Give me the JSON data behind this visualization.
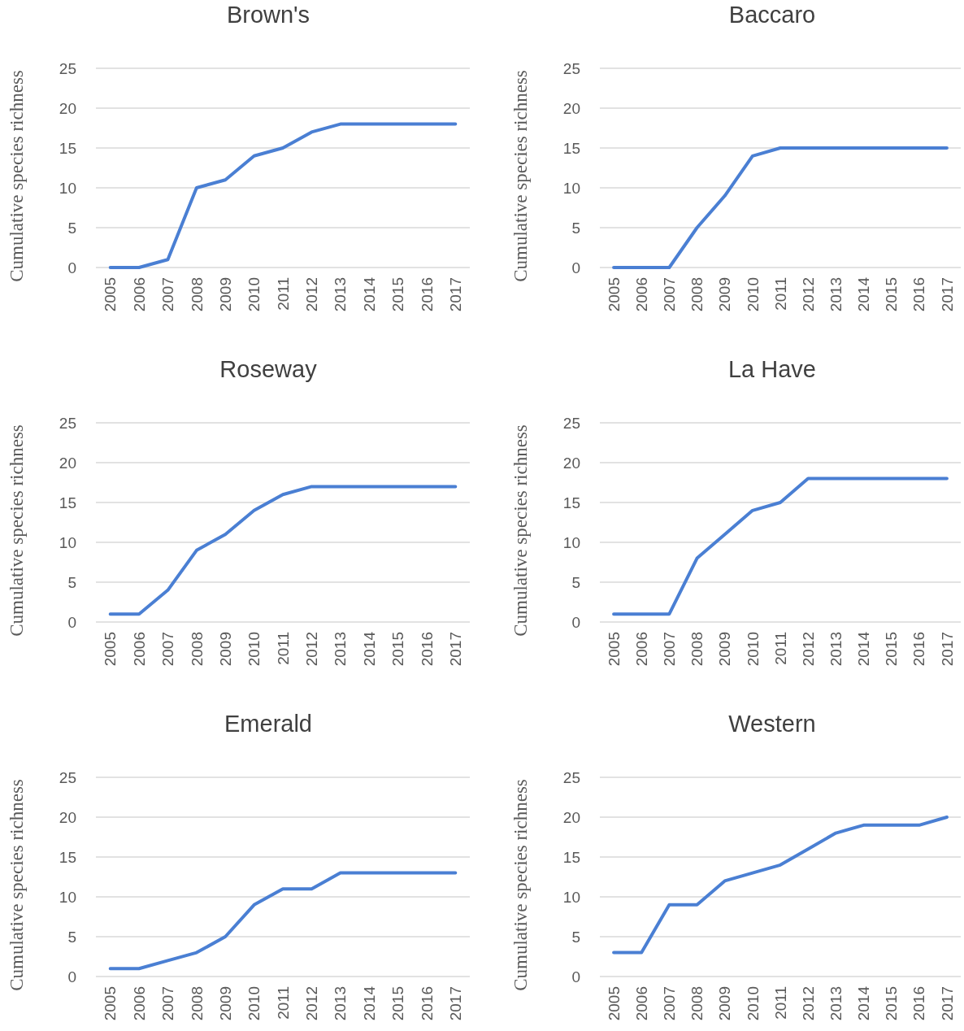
{
  "chart_data": [
    {
      "type": "line",
      "title": "Brown's",
      "ylabel": "Cumulative species richness",
      "categories": [
        "2005",
        "2006",
        "2007",
        "2008",
        "2009",
        "2010",
        "2011",
        "2012",
        "2013",
        "2014",
        "2015",
        "2016",
        "2017"
      ],
      "series": [
        {
          "color": "#4a7fd3",
          "values": [
            0,
            0,
            1,
            10,
            11,
            14,
            15,
            17,
            18,
            18,
            18,
            18,
            18
          ]
        }
      ],
      "ylim": [
        0,
        25
      ],
      "yticks": [
        0,
        5,
        10,
        15,
        20,
        25
      ],
      "grid": "y"
    },
    {
      "type": "line",
      "title": "Baccaro",
      "ylabel": "Cumulative species richness",
      "categories": [
        "2005",
        "2006",
        "2007",
        "2008",
        "2009",
        "2010",
        "2011",
        "2012",
        "2013",
        "2014",
        "2015",
        "2016",
        "2017"
      ],
      "series": [
        {
          "color": "#4a7fd3",
          "values": [
            0,
            0,
            0,
            5,
            9,
            14,
            15,
            15,
            15,
            15,
            15,
            15,
            15
          ]
        }
      ],
      "ylim": [
        0,
        25
      ],
      "yticks": [
        0,
        5,
        10,
        15,
        20,
        25
      ],
      "grid": "y"
    },
    {
      "type": "line",
      "title": "Roseway",
      "ylabel": "Cumulative species richness",
      "categories": [
        "2005",
        "2006",
        "2007",
        "2008",
        "2009",
        "2010",
        "2011",
        "2012",
        "2013",
        "2014",
        "2015",
        "2016",
        "2017"
      ],
      "series": [
        {
          "color": "#4a7fd3",
          "values": [
            1,
            1,
            4,
            9,
            11,
            14,
            16,
            17,
            17,
            17,
            17,
            17,
            17
          ]
        }
      ],
      "ylim": [
        0,
        25
      ],
      "yticks": [
        0,
        5,
        10,
        15,
        20,
        25
      ],
      "grid": "y"
    },
    {
      "type": "line",
      "title": "La Have",
      "ylabel": "Cumulative species richness",
      "categories": [
        "2005",
        "2006",
        "2007",
        "2008",
        "2009",
        "2010",
        "2011",
        "2012",
        "2013",
        "2014",
        "2015",
        "2016",
        "2017"
      ],
      "series": [
        {
          "color": "#4a7fd3",
          "values": [
            1,
            1,
            1,
            8,
            11,
            14,
            15,
            18,
            18,
            18,
            18,
            18,
            18
          ]
        }
      ],
      "ylim": [
        0,
        25
      ],
      "yticks": [
        0,
        5,
        10,
        15,
        20,
        25
      ],
      "grid": "y"
    },
    {
      "type": "line",
      "title": "Emerald",
      "ylabel": "Cumulative species richness",
      "categories": [
        "2005",
        "2006",
        "2007",
        "2008",
        "2009",
        "2010",
        "2011",
        "2012",
        "2013",
        "2014",
        "2015",
        "2016",
        "2017"
      ],
      "series": [
        {
          "color": "#4a7fd3",
          "values": [
            1,
            1,
            2,
            3,
            5,
            9,
            11,
            11,
            13,
            13,
            13,
            13,
            13
          ]
        }
      ],
      "ylim": [
        0,
        25
      ],
      "yticks": [
        0,
        5,
        10,
        15,
        20,
        25
      ],
      "grid": "y"
    },
    {
      "type": "line",
      "title": "Western",
      "ylabel": "Cumulative species richness",
      "categories": [
        "2005",
        "2006",
        "2007",
        "2008",
        "2009",
        "2010",
        "2011",
        "2012",
        "2013",
        "2014",
        "2015",
        "2016",
        "2017"
      ],
      "series": [
        {
          "color": "#4a7fd3",
          "values": [
            3,
            3,
            9,
            9,
            12,
            13,
            14,
            16,
            18,
            19,
            19,
            19,
            20
          ]
        }
      ],
      "ylim": [
        0,
        25
      ],
      "yticks": [
        0,
        5,
        10,
        15,
        20,
        25
      ],
      "grid": "y"
    }
  ]
}
